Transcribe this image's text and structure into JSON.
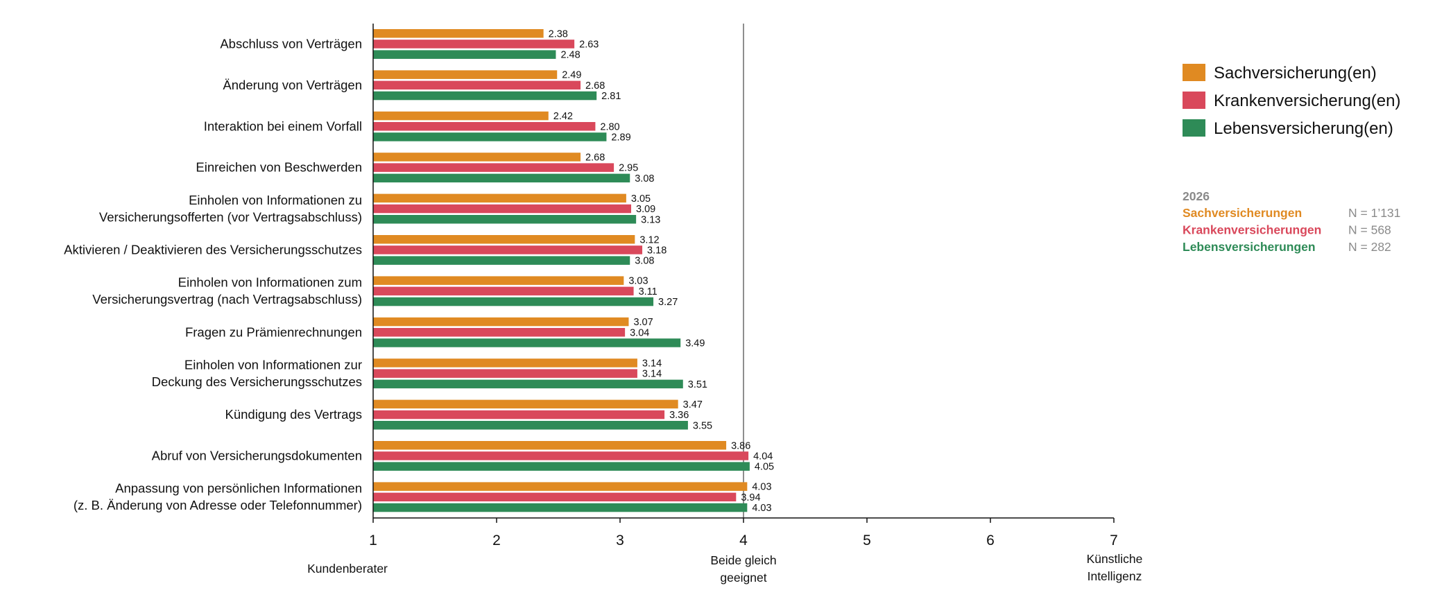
{
  "chart_data": {
    "type": "bar",
    "orientation": "horizontal",
    "categories": [
      [
        "Abschluss von Verträgen"
      ],
      [
        "Änderung von Verträgen"
      ],
      [
        "Interaktion bei einem Vorfall"
      ],
      [
        "Einreichen von Beschwerden"
      ],
      [
        "Einholen von Informationen zu",
        "Versicherungsofferten (vor Vertragsabschluss)"
      ],
      [
        "Aktivieren / Deaktivieren des Versicherungsschutzes"
      ],
      [
        "Einholen von Informationen zum",
        "Versicherungsvertrag (nach Vertragsabschluss)"
      ],
      [
        "Fragen zu Prämienrechnungen"
      ],
      [
        "Einholen von Informationen zur",
        "Deckung des Versicherungsschutzes"
      ],
      [
        "Kündigung des Vertrags"
      ],
      [
        "Abruf von Versicherungsdokumenten"
      ],
      [
        "Anpassung von persönlichen Informationen",
        "(z. B. Änderung von Adresse oder Telefonnummer)"
      ]
    ],
    "series": [
      {
        "name": "Sachversicherung(en)",
        "color": "#E08A22",
        "values": [
          2.38,
          2.49,
          2.42,
          2.68,
          3.05,
          3.12,
          3.03,
          3.07,
          3.14,
          3.47,
          3.86,
          4.03
        ],
        "labels": [
          "2.38",
          "2.49",
          "2.42",
          "2.68",
          "3.05",
          "3.12",
          "3.03",
          "3.07",
          "3.14",
          "3.47",
          "3.86",
          "4.03"
        ]
      },
      {
        "name": "Krankenversicherung(en)",
        "color": "#D9485B",
        "values": [
          2.63,
          2.68,
          2.8,
          2.95,
          3.09,
          3.18,
          3.11,
          3.04,
          3.14,
          3.36,
          4.04,
          3.94
        ],
        "labels": [
          "2.63",
          "2.68",
          "2.80",
          "2.95",
          "3.09",
          "3.18",
          "3.11",
          "3.04",
          "3.14",
          "3.36",
          "4.04",
          "3.94"
        ]
      },
      {
        "name": "Lebensversicherung(en)",
        "color": "#2E8B57",
        "values": [
          2.48,
          2.81,
          2.89,
          3.08,
          3.13,
          3.08,
          3.27,
          3.49,
          3.51,
          3.55,
          4.05,
          4.03
        ],
        "labels": [
          "2.48",
          "2.81",
          "2.89",
          "3.08",
          "3.13",
          "3.08",
          "3.27",
          "3.49",
          "3.51",
          "3.55",
          "4.05",
          "4.03"
        ]
      }
    ],
    "xlim": [
      1,
      7
    ],
    "xticks": [
      "1",
      "2",
      "3",
      "4",
      "5",
      "6",
      "7"
    ],
    "reference_line": 4,
    "scale_labels": [
      {
        "at": 1,
        "lines": [
          "Kundenberater"
        ]
      },
      {
        "at": 4,
        "lines": [
          "Beide gleich",
          "geeignet"
        ]
      },
      {
        "at": 7,
        "lines": [
          "Künstliche",
          "Intelligenz"
        ]
      }
    ],
    "legend_position": "top-right",
    "sample_info": {
      "year": "2026",
      "rows": [
        {
          "name": "Sachversicherungen",
          "n": "N = 1’131",
          "color": "#E08A22"
        },
        {
          "name": "Krankenversicherungen",
          "n": "N = 568",
          "color": "#D9485B"
        },
        {
          "name": "Lebensversicherungen",
          "n": "N = 282",
          "color": "#2E8B57"
        }
      ]
    }
  }
}
